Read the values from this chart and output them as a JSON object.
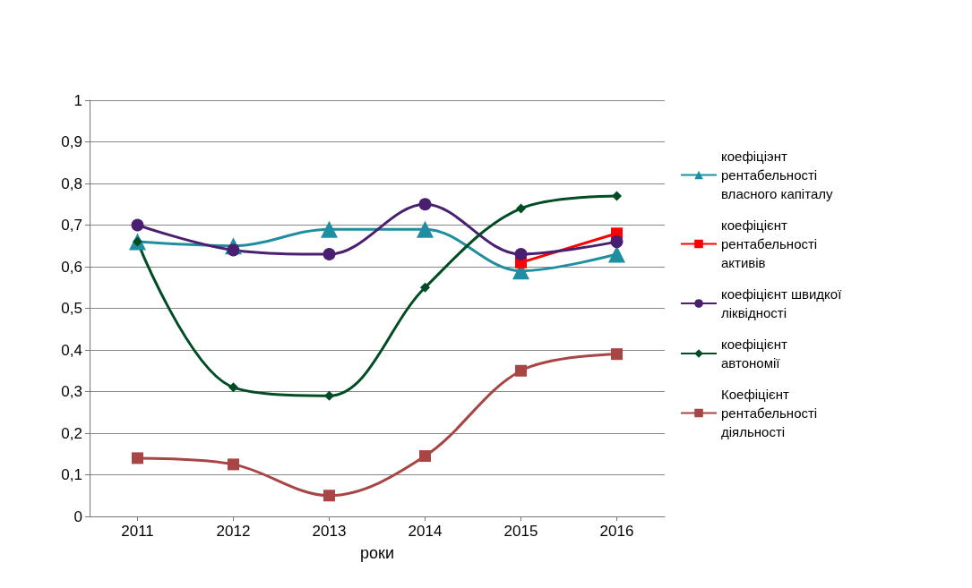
{
  "chart_data": {
    "type": "line",
    "xlabel": "роки",
    "categories": [
      "2011",
      "2012",
      "2013",
      "2014",
      "2015",
      "2016"
    ],
    "series": [
      {
        "name": "коефіціэнт рентабельності власного капіталу",
        "color": "#1f8ea0",
        "marker": "triangle",
        "values": [
          0.66,
          0.65,
          0.69,
          0.69,
          0.59,
          0.63
        ]
      },
      {
        "name": "коефіцієнт рентабельності активів",
        "color": "#ff0000",
        "marker": "square",
        "values": [
          null,
          null,
          null,
          null,
          0.61,
          0.68
        ]
      },
      {
        "name": "коефіцієнт швидкої ліквідності",
        "color": "#4b1f6f",
        "marker": "circle",
        "values": [
          0.7,
          0.64,
          0.63,
          0.75,
          0.63,
          0.66
        ]
      },
      {
        "name": "коефіцієнт автономії",
        "color": "#004d25",
        "marker": "diamond",
        "values": [
          0.66,
          0.31,
          0.29,
          0.55,
          0.74,
          0.77
        ]
      },
      {
        "name": "Коефіцієнт рентабельності діяльності",
        "color": "#a84545",
        "marker": "square",
        "values": [
          0.14,
          0.125,
          0.05,
          0.145,
          0.35,
          0.39
        ]
      }
    ],
    "ylim": [
      0,
      1
    ],
    "yticks": [
      0,
      {
        "value": 0.1,
        "label": "0,1"
      },
      {
        "value": 0.2,
        "label": "0,2"
      },
      {
        "value": 0.3,
        "label": "0,3"
      },
      {
        "value": 0.4,
        "label": "0,4"
      },
      {
        "value": 0.5,
        "label": "0,5"
      },
      {
        "value": 0.6,
        "label": "0,6"
      },
      {
        "value": 0.7,
        "label": "0,7"
      },
      {
        "value": 0.8,
        "label": "0,8"
      },
      {
        "value": 0.9,
        "label": "0,9"
      },
      1
    ],
    "grid": "y",
    "legend": "right"
  }
}
